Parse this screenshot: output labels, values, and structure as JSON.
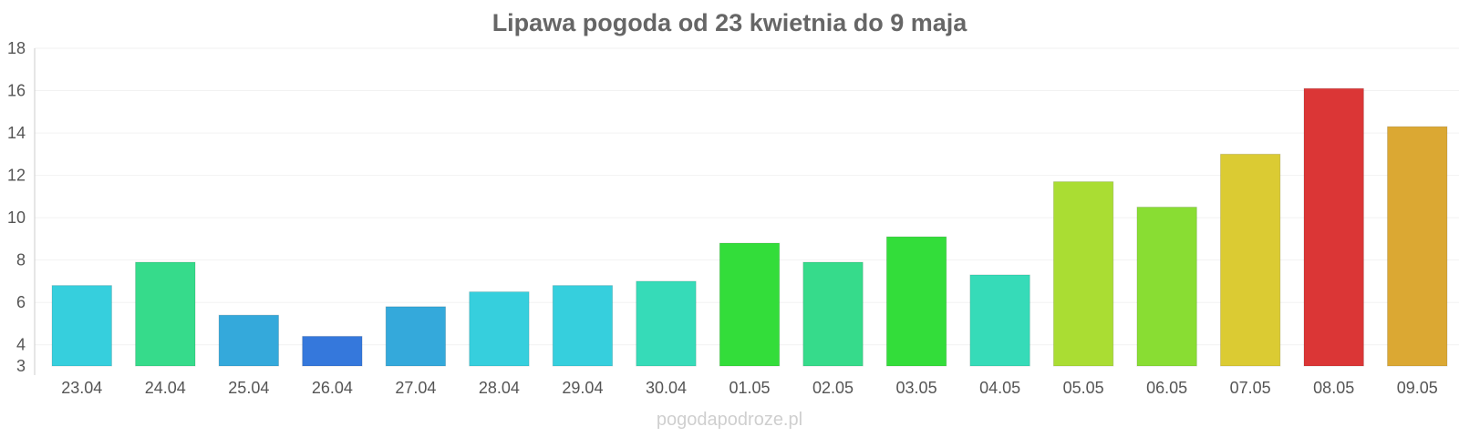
{
  "chart_data": {
    "type": "bar",
    "title": "Lipawa pogoda od 23 kwietnia do 9 maja",
    "categories": [
      "23.04",
      "24.04",
      "25.04",
      "26.04",
      "27.04",
      "28.04",
      "29.04",
      "30.04",
      "01.05",
      "02.05",
      "03.05",
      "04.05",
      "05.05",
      "06.05",
      "07.05",
      "08.05",
      "09.05"
    ],
    "values": [
      6.8,
      7.9,
      5.4,
      4.4,
      5.8,
      6.5,
      6.8,
      7.0,
      8.8,
      7.9,
      9.1,
      7.3,
      11.7,
      10.5,
      13.0,
      16.1,
      14.3
    ],
    "colors": [
      "#36CFDD",
      "#36DB8B",
      "#34A9DB",
      "#3578DC",
      "#34A9DB",
      "#36CFDD",
      "#36CFDD",
      "#36DBB8",
      "#33DD3A",
      "#36DB8B",
      "#33DD3A",
      "#36DBB8",
      "#AADD33",
      "#89DD33",
      "#DBCB33",
      "#DB3636",
      "#DBA833"
    ],
    "xlabel": "",
    "ylabel": "",
    "ylim": [
      3,
      18
    ],
    "yticks": [
      3,
      4,
      6,
      8,
      10,
      12,
      14,
      16,
      18
    ],
    "grid": true
  },
  "watermark": "pogodapodroze.pl"
}
